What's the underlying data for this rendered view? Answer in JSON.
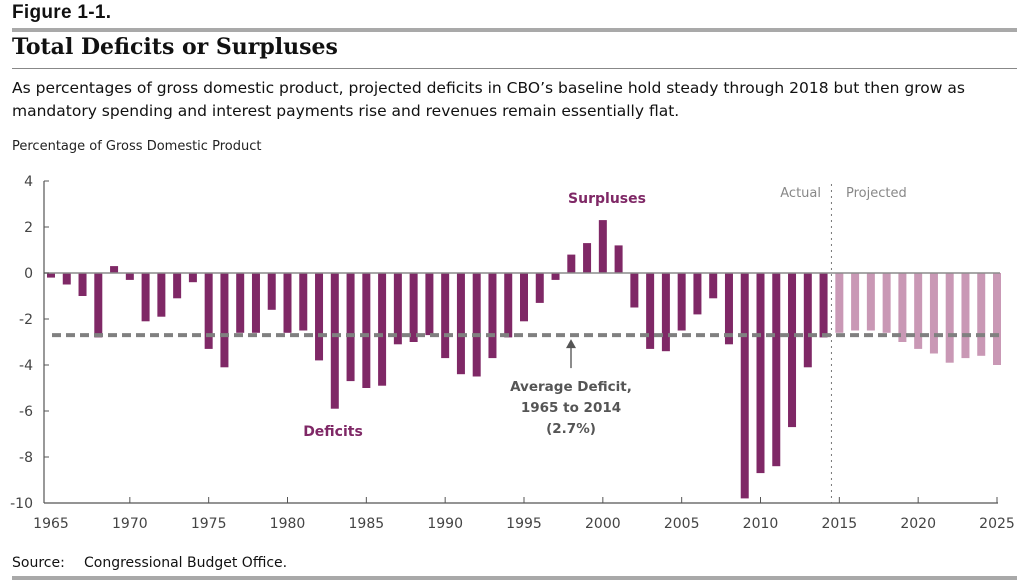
{
  "figure_label": "Figure 1-1.",
  "title": "Total Deficits or Surpluses",
  "subtitle": "As percentages of gross domestic product, projected deficits in CBO’s baseline hold steady through 2018 but then grow as mandatory spending and interest payments rise and revenues remain essentially flat.",
  "source_label": "Source:",
  "source_text": "Congressional Budget Office.",
  "colors": {
    "actual": "#7f2866",
    "projected": "#c998b5",
    "average_line": "#808080",
    "axis": "#555555"
  },
  "chart_data": {
    "type": "bar",
    "title": "Total Deficits or Surpluses",
    "ylabel": "Percentage of Gross Domestic Product",
    "xlabel": "",
    "ylim": [
      -10,
      4
    ],
    "xlim": [
      1965,
      2025
    ],
    "yticks": [
      4,
      2,
      0,
      -2,
      -4,
      -6,
      -8,
      -10
    ],
    "xticks": [
      1965,
      1970,
      1975,
      1980,
      1985,
      1990,
      1995,
      2000,
      2005,
      2010,
      2015,
      2020,
      2025
    ],
    "grid": false,
    "series": [
      {
        "name": "Actual",
        "x": [
          1965,
          1966,
          1967,
          1968,
          1969,
          1970,
          1971,
          1972,
          1973,
          1974,
          1975,
          1976,
          1977,
          1978,
          1979,
          1980,
          1981,
          1982,
          1983,
          1984,
          1985,
          1986,
          1987,
          1988,
          1989,
          1990,
          1991,
          1992,
          1993,
          1994,
          1995,
          1996,
          1997,
          1998,
          1999,
          2000,
          2001,
          2002,
          2003,
          2004,
          2005,
          2006,
          2007,
          2008,
          2009,
          2010,
          2011,
          2012,
          2013,
          2014
        ],
        "values": [
          -0.2,
          -0.5,
          -1.0,
          -2.8,
          0.3,
          -0.3,
          -2.1,
          -1.9,
          -1.1,
          -0.4,
          -3.3,
          -4.1,
          -2.6,
          -2.6,
          -1.6,
          -2.6,
          -2.5,
          -3.8,
          -5.9,
          -4.7,
          -5.0,
          -4.9,
          -3.1,
          -3.0,
          -2.7,
          -3.7,
          -4.4,
          -4.5,
          -3.7,
          -2.8,
          -2.1,
          -1.3,
          -0.3,
          0.8,
          1.3,
          2.3,
          1.2,
          -1.5,
          -3.3,
          -3.4,
          -2.5,
          -1.8,
          -1.1,
          -3.1,
          -9.8,
          -8.7,
          -8.4,
          -6.7,
          -4.1,
          -2.8
        ]
      },
      {
        "name": "Projected",
        "x": [
          2015,
          2016,
          2017,
          2018,
          2019,
          2020,
          2021,
          2022,
          2023,
          2024,
          2025
        ],
        "values": [
          -2.6,
          -2.5,
          -2.5,
          -2.6,
          -3.0,
          -3.3,
          -3.5,
          -3.9,
          -3.7,
          -3.6,
          -4.0
        ]
      }
    ],
    "reference_line": {
      "label": "Average Deficit, 1965 to 2014 (2.7%)",
      "value": -2.7
    },
    "annotations": {
      "surpluses": "Surpluses",
      "deficits": "Deficits",
      "average_line1": "Average Deficit,",
      "average_line2": "1965 to 2014",
      "average_line3": "(2.7%)",
      "actual": "Actual",
      "projected": "Projected"
    },
    "divider_between": [
      2014,
      2015
    ]
  }
}
